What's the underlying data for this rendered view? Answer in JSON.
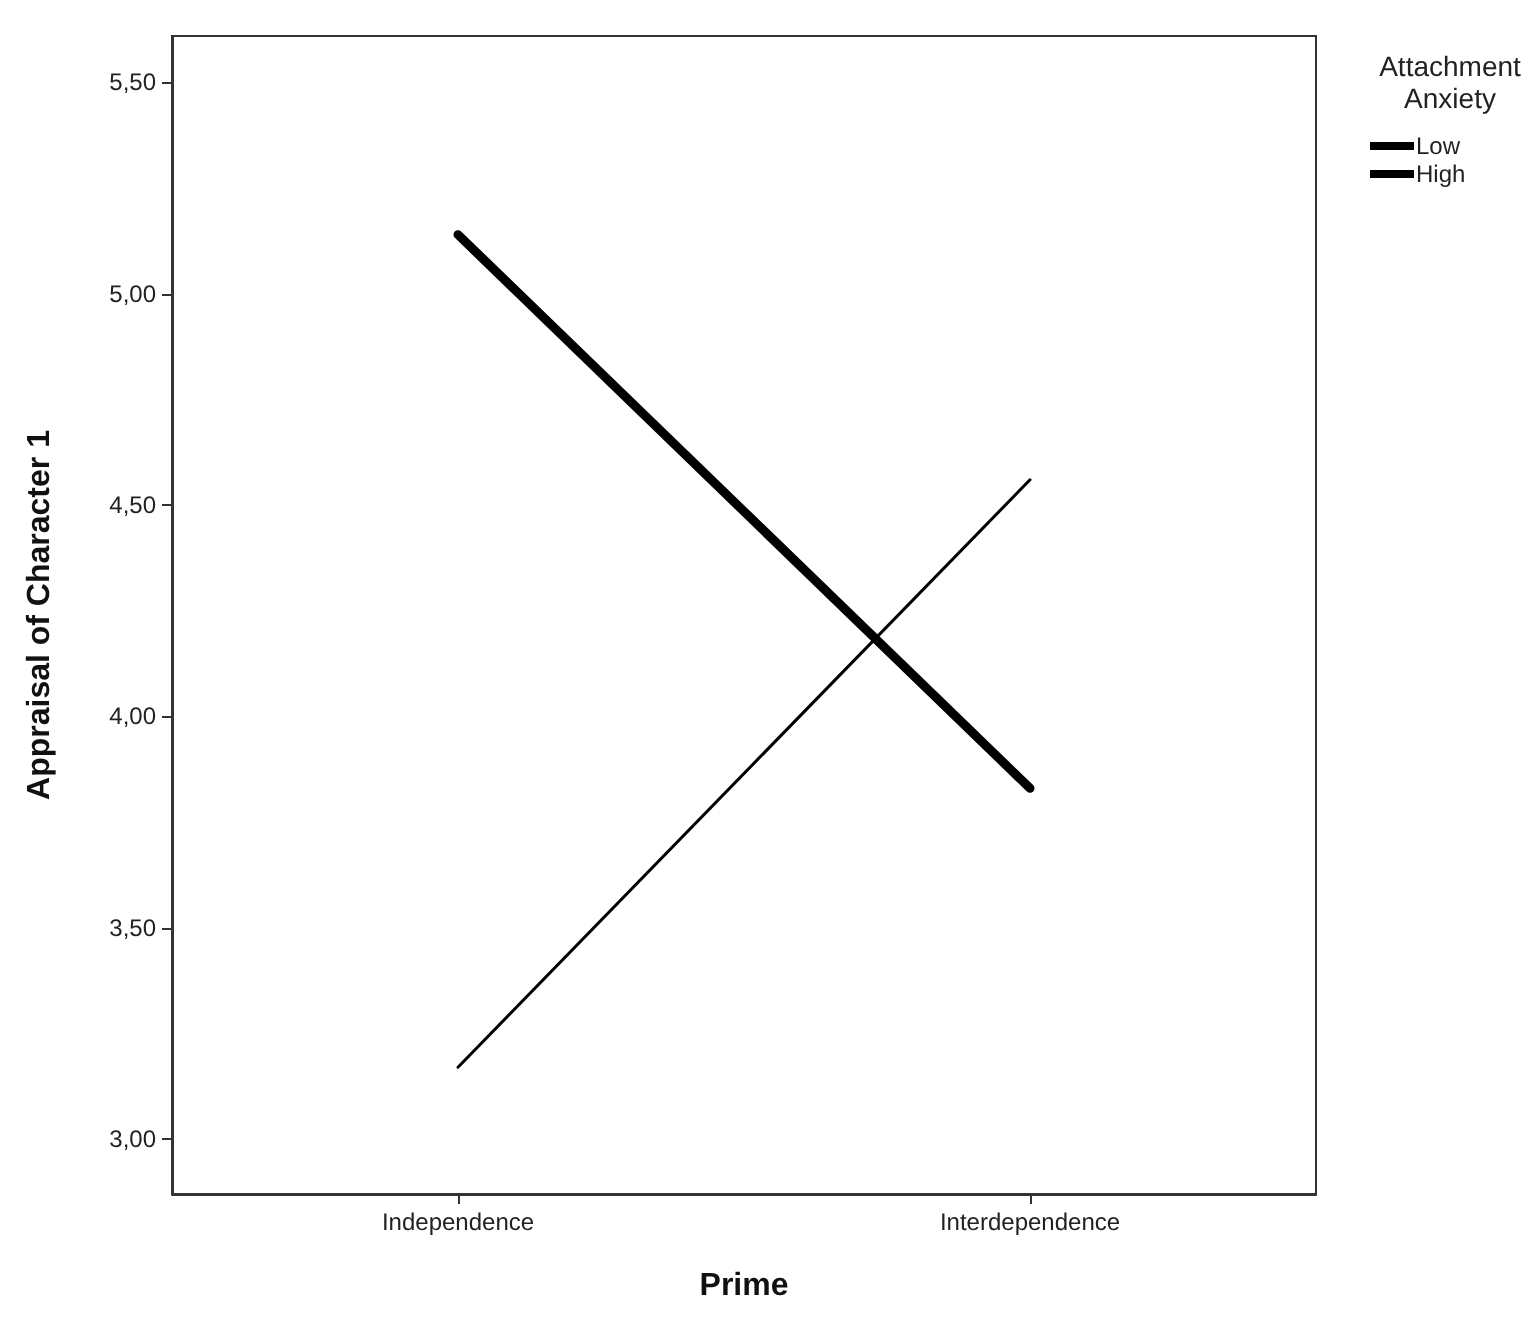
{
  "chart_data": {
    "type": "line",
    "xlabel": "Prime",
    "ylabel": "Appraisal of Character 1",
    "legend_title": "Attachment Anxiety",
    "categories": [
      "Independence",
      "Interdependence"
    ],
    "series": [
      {
        "name": "Low",
        "color": "#000000",
        "values": [
          3.17,
          4.56
        ]
      },
      {
        "name": "High",
        "color": "#000000",
        "values": [
          5.14,
          3.83
        ]
      }
    ],
    "ylim": [
      2.87,
      5.61
    ],
    "yticks": [
      {
        "value": 3.0,
        "label": "3,00"
      },
      {
        "value": 3.5,
        "label": "3,50"
      },
      {
        "value": 4.0,
        "label": "4,00"
      },
      {
        "value": 4.5,
        "label": "4,50"
      },
      {
        "value": 5.0,
        "label": "5,00"
      },
      {
        "value": 5.5,
        "label": "5,50"
      }
    ],
    "grid": false,
    "legend": "top right",
    "marker": "none",
    "line_style": "solid"
  }
}
